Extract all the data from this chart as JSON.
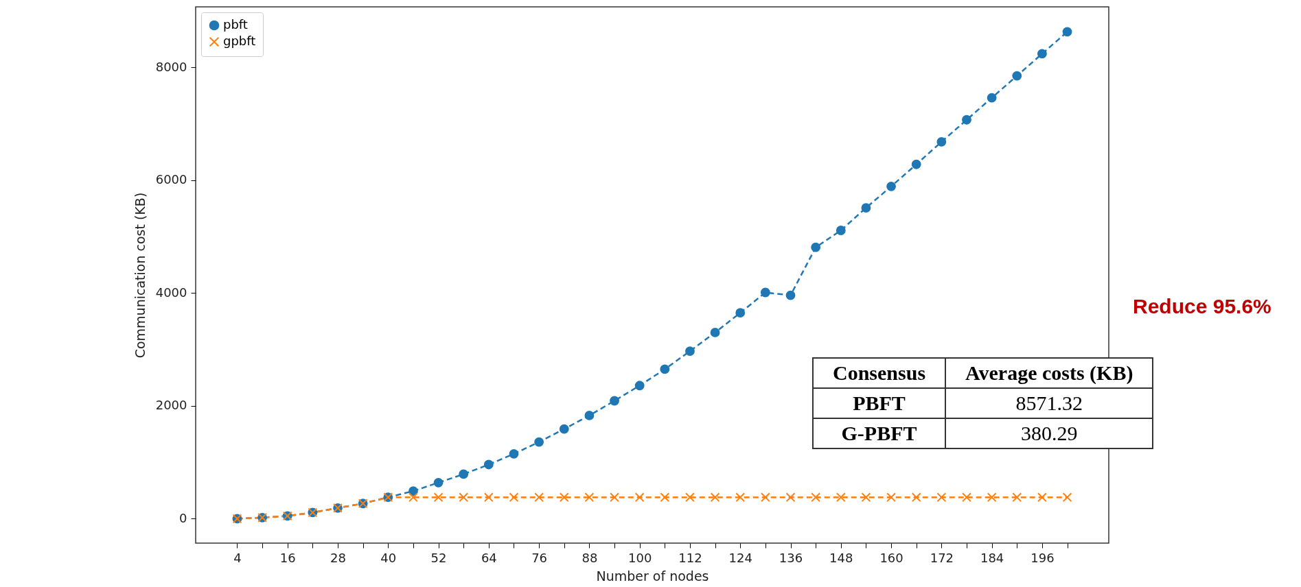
{
  "chart_data": {
    "type": "line",
    "xlabel": "Number of nodes",
    "ylabel": "Communication cost (KB)",
    "x": [
      4,
      10,
      16,
      22,
      28,
      34,
      40,
      46,
      52,
      58,
      64,
      70,
      76,
      82,
      88,
      94,
      100,
      106,
      112,
      118,
      124,
      130,
      136,
      142,
      148,
      154,
      160,
      166,
      172,
      178,
      184,
      190,
      196,
      202
    ],
    "series": [
      {
        "name": "pbft",
        "color": "#1f77b4",
        "marker": "circle",
        "values": [
          0,
          20,
          50,
          110,
          190,
          270,
          380,
          490,
          640,
          790,
          960,
          1150,
          1360,
          1590,
          1830,
          2090,
          2360,
          2650,
          2970,
          3300,
          3650,
          4010,
          3960,
          4810,
          5110,
          5510,
          5890,
          6280,
          6680,
          7070,
          7460,
          7850,
          8240,
          8630
        ]
      },
      {
        "name": "gpbft",
        "color": "#ff7f0e",
        "marker": "cross",
        "values": [
          0,
          20,
          50,
          110,
          190,
          270,
          380,
          380,
          380,
          380,
          380,
          380,
          380,
          380,
          380,
          380,
          380,
          380,
          380,
          380,
          380,
          380,
          380,
          380,
          380,
          380,
          380,
          380,
          380,
          380,
          380,
          380,
          380,
          380
        ]
      }
    ],
    "xlim": [
      -5.9,
      211.9
    ],
    "xticks": [
      4,
      {
        "value": 10,
        "label": null
      },
      16,
      {
        "value": 22,
        "label": null
      },
      28,
      {
        "value": 34,
        "label": null
      },
      40,
      {
        "value": 46,
        "label": null
      },
      52,
      {
        "value": 58,
        "label": null
      },
      64,
      {
        "value": 70,
        "label": null
      },
      76,
      {
        "value": 82,
        "label": null
      },
      88,
      {
        "value": 94,
        "label": null
      },
      100,
      {
        "value": 106,
        "label": null
      },
      112,
      {
        "value": 118,
        "label": null
      },
      124,
      {
        "value": 130,
        "label": null
      },
      136,
      {
        "value": 142,
        "label": null
      },
      148,
      {
        "value": 154,
        "label": null
      },
      160,
      {
        "value": 166,
        "label": null
      },
      172,
      {
        "value": 178,
        "label": null
      },
      184,
      {
        "value": 190,
        "label": null
      },
      196,
      {
        "value": 202,
        "label": null
      }
    ],
    "ylim": [
      -432,
      9072
    ],
    "yticks": [
      0,
      2000,
      4000,
      6000,
      8000
    ],
    "line_style": "dashed",
    "legend": "top left",
    "grid": false,
    "annotations": [
      "Reduce 95.6%",
      "Consensus",
      "Average costs (KB)",
      "PBFT",
      "8571.32",
      "G-PBFT",
      "380.29"
    ]
  }
}
